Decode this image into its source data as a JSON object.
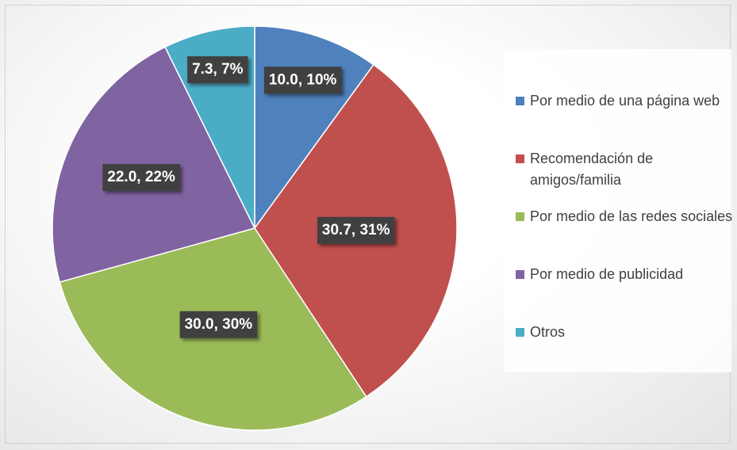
{
  "chart_data": {
    "type": "pie",
    "categories": [
      "Por medio de una página web",
      "Recomendación de amigos/familia",
      "Por medio de las redes sociales",
      "Por medio de publicidad",
      "Otros"
    ],
    "values": [
      10.0,
      30.7,
      30.0,
      22.0,
      7.3
    ],
    "value_labels": [
      "10.0, 10%",
      "30.7, 31%",
      "30.0, 30%",
      "22.0, 22%",
      "7.3, 7%"
    ],
    "colors": [
      "#4f81bd",
      "#c0504d",
      "#9bbb59",
      "#8064a2",
      "#4bacc6"
    ],
    "legend": "right"
  }
}
